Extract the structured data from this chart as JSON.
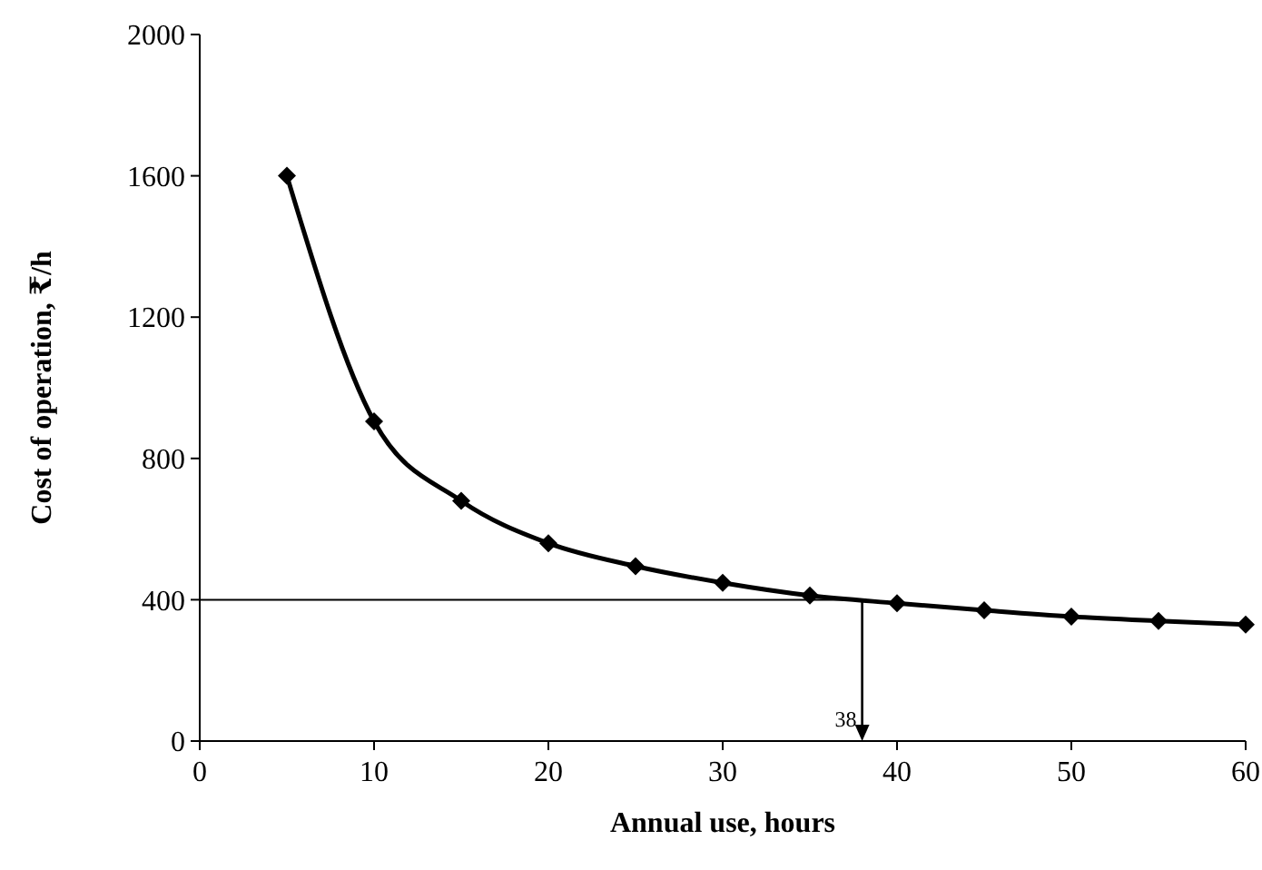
{
  "chart_data": {
    "type": "line",
    "xlabel": "Annual  use, hours",
    "ylabel": "Cost of operation, ₹/h",
    "x": [
      5,
      10,
      15,
      20,
      25,
      30,
      35,
      40,
      45,
      50,
      55,
      60
    ],
    "series": [
      {
        "color": "#000000",
        "values": [
          1600,
          905,
          680,
          560,
          495,
          448,
          412,
          390,
          370,
          352,
          340,
          330
        ]
      }
    ],
    "xlim": [
      0,
      60
    ],
    "xticks": [
      0,
      10,
      20,
      30,
      40,
      50,
      60
    ],
    "ylim": [
      0,
      2000
    ],
    "yticks": [
      0,
      400,
      800,
      1200,
      1600,
      2000
    ],
    "marker": "diamond",
    "line_style": "solid",
    "grid": false,
    "ref_lines": [
      {
        "axis": "y",
        "value": 400,
        "color": "#000000"
      },
      {
        "axis": "x",
        "value": 38,
        "label": "38",
        "color": "#000000"
      }
    ]
  }
}
